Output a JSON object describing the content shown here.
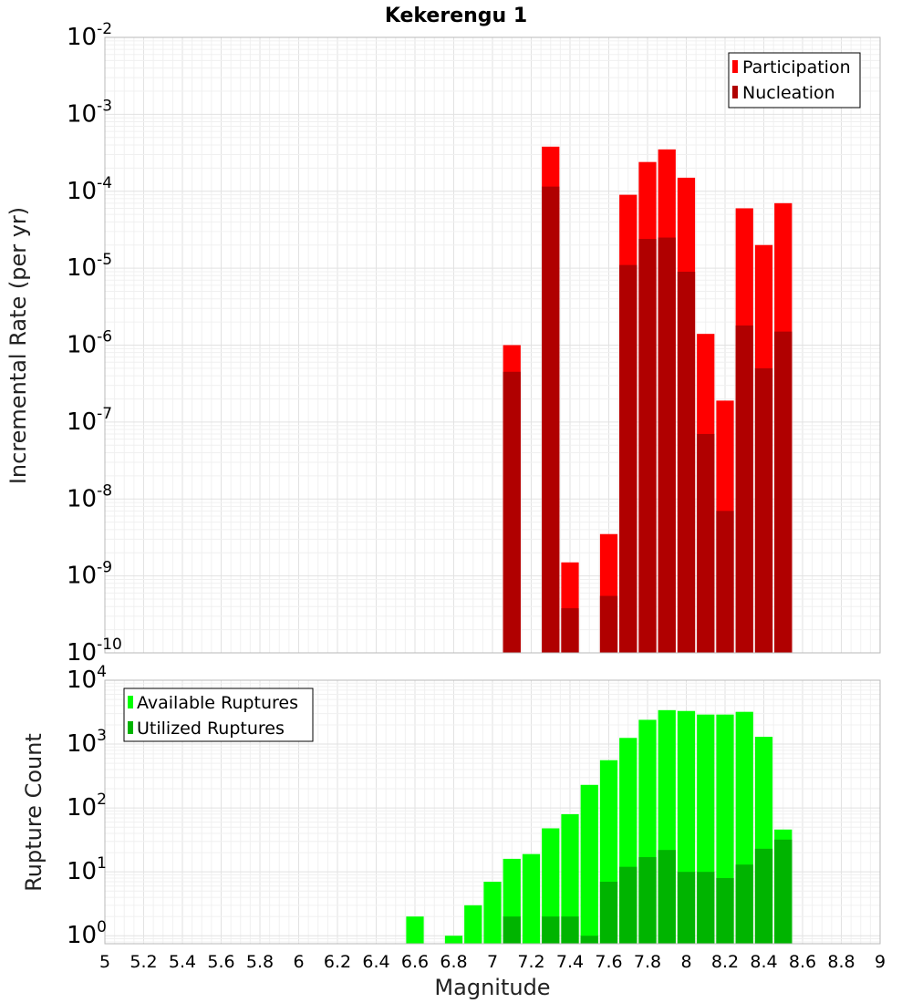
{
  "chart_data": [
    {
      "type": "bar",
      "title": "Kekerengu 1",
      "xlabel": "",
      "ylabel": "Incremental Rate (per yr)",
      "yscale": "log",
      "ylim": [
        1e-10,
        0.01
      ],
      "xlim": [
        5,
        9
      ],
      "bin_width": 0.1,
      "legend_position": "top-right",
      "x": [
        7.1,
        7.3,
        7.4,
        7.6,
        7.7,
        7.8,
        7.9,
        8.0,
        8.1,
        8.2,
        8.3,
        8.4,
        8.5
      ],
      "series": [
        {
          "name": "Participation",
          "color": "#ff0000",
          "values": [
            1e-06,
            0.00038,
            1.5e-09,
            3.5e-09,
            9e-05,
            0.00024,
            0.00035,
            0.00015,
            1.4e-06,
            1.9e-07,
            6e-05,
            2e-05,
            7e-05
          ]
        },
        {
          "name": "Nucleation",
          "color": "#b00000",
          "values": [
            4.5e-07,
            0.000115,
            3.8e-10,
            5.5e-10,
            1.1e-05,
            2.4e-05,
            2.5e-05,
            9e-06,
            7e-08,
            7e-09,
            1.8e-06,
            5e-07,
            1.5e-06
          ]
        }
      ],
      "ytick_bases": [
        "10",
        "10",
        "10",
        "10",
        "10",
        "10",
        "10",
        "10",
        "10"
      ],
      "ytick_exponents": [
        "-2",
        "-3",
        "-4",
        "-5",
        "-6",
        "-7",
        "-8",
        "-9",
        "-10"
      ]
    },
    {
      "type": "bar",
      "title": "",
      "xlabel": "Magnitude",
      "ylabel": "Rupture Count",
      "yscale": "log",
      "ylim": [
        0.75,
        10000
      ],
      "xlim": [
        5,
        9
      ],
      "bin_width": 0.1,
      "legend_position": "top-left",
      "x": [
        6.6,
        6.8,
        6.9,
        7.0,
        7.1,
        7.2,
        7.3,
        7.4,
        7.5,
        7.6,
        7.7,
        7.8,
        7.9,
        8.0,
        8.1,
        8.2,
        8.3,
        8.4,
        8.5
      ],
      "series": [
        {
          "name": "Available Ruptures",
          "color": "#00ff00",
          "values": [
            2,
            1,
            3,
            7,
            16,
            19,
            48,
            80,
            230,
            560,
            1250,
            2400,
            3400,
            3300,
            2900,
            2900,
            3200,
            1300,
            46
          ]
        },
        {
          "name": "Utilized Ruptures",
          "color": "#00b400",
          "values": [
            0,
            0,
            0,
            0,
            2,
            0,
            2,
            2,
            1,
            7,
            12,
            17,
            22,
            10,
            10,
            8,
            13,
            23,
            32
          ]
        }
      ],
      "ytick_bases": [
        "10",
        "10",
        "10",
        "10",
        "10"
      ],
      "ytick_exponents": [
        "4",
        "3",
        "2",
        "1",
        "0"
      ],
      "xtick_labels": [
        "5",
        "5.2",
        "5.4",
        "5.6",
        "5.8",
        "6",
        "6.2",
        "6.4",
        "6.6",
        "6.8",
        "7",
        "7.2",
        "7.4",
        "7.6",
        "7.8",
        "8",
        "8.2",
        "8.4",
        "8.6",
        "8.8",
        "9"
      ]
    }
  ]
}
